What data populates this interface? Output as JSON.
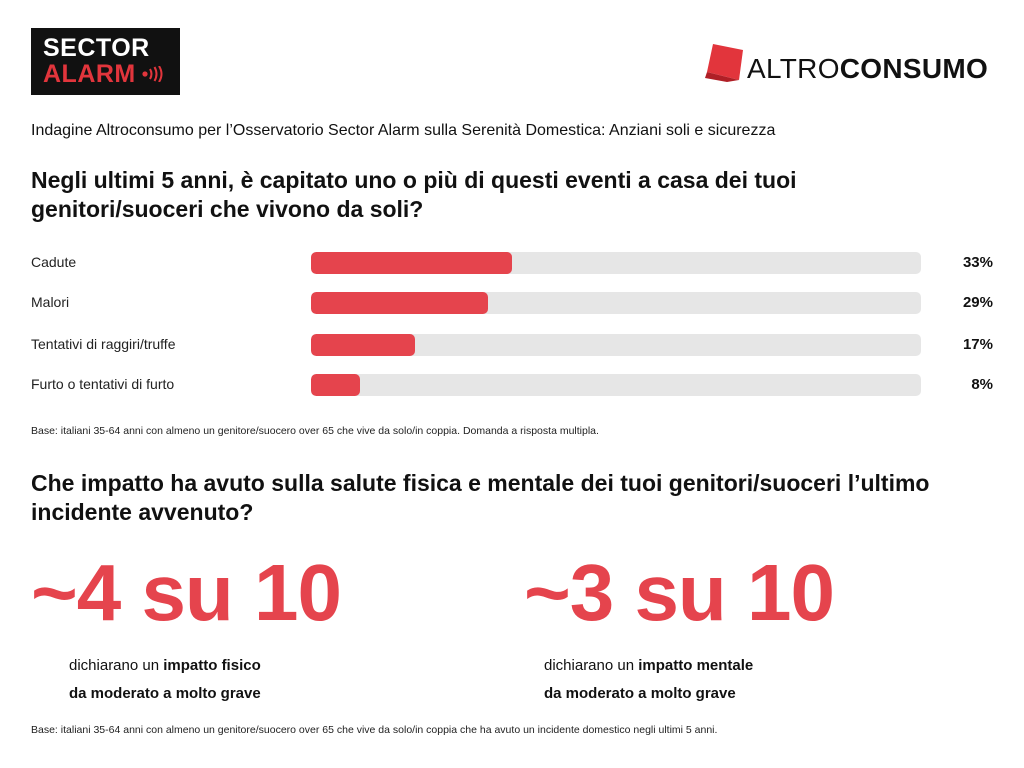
{
  "logos": {
    "sector_alarm": {
      "line1": "SECTOR",
      "line2": "ALARM",
      "waves_icon": "signal-waves-icon"
    },
    "altroconsumo": {
      "light": "ALTRO",
      "bold": "CONSUMO",
      "mark_icon": "red-folded-square-icon"
    }
  },
  "subtitle": "Indagine Altroconsumo per l’Osservatorio Sector Alarm sulla Serenità Domestica: Anziani soli e sicurezza",
  "question1": "Negli ultimi 5 anni, è capitato uno o più di questi eventi a casa dei tuoi genitori/suoceri che vivono da soli?",
  "chart_data": {
    "type": "bar",
    "orientation": "horizontal",
    "categories": [
      "Cadute",
      "Malori",
      "Tentativi di raggiri/truffe",
      "Furto o tentativi di furto"
    ],
    "values": [
      33,
      29,
      17,
      8
    ],
    "value_labels": [
      "33%",
      "29%",
      "17%",
      "8%"
    ],
    "unit": "%",
    "xlim": [
      0,
      100
    ],
    "grid": false,
    "colors": {
      "bar": "#e5444d",
      "track": "#e6e6e6"
    }
  },
  "base1": "Base: italiani 35-64 anni con almeno un genitore/suocero over 65 che vive da solo/in coppia. Domanda a risposta multipla.",
  "question2": "Che impatto ha avuto sulla salute fisica e mentale dei tuoi genitori/suoceri l’ultimo incidente avvenuto?",
  "stats": [
    {
      "big": "~4 su 10",
      "prefix": "dichiarano un ",
      "emphasis": "impatto fisico",
      "line2": "da moderato a molto grave"
    },
    {
      "big": "~3 su 10",
      "prefix": "dichiarano un ",
      "emphasis": "impatto mentale",
      "line2": "da moderato a molto grave"
    }
  ],
  "base2": "Base: italiani 35-64 anni con almeno un genitore/suocero over 65 che vive da solo/in coppia che ha avuto un incidente domestico negli ultimi 5 anni.",
  "colors": {
    "accent": "#e5444d",
    "text": "#111111",
    "logo_bg": "#111111"
  }
}
